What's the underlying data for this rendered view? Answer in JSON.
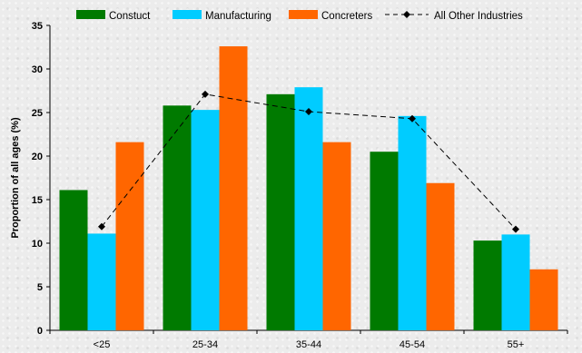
{
  "chart_data": {
    "type": "bar",
    "title": "",
    "xlabel": "",
    "ylabel": "Proportion of all ages (%)",
    "categories": [
      "<25",
      "25-34",
      "35-44",
      "45-54",
      "55+"
    ],
    "ylim": [
      0,
      35
    ],
    "yticks": [
      0,
      5,
      10,
      15,
      20,
      25,
      30,
      35
    ],
    "grid": false,
    "legend_position": "top",
    "series": [
      {
        "name": "Constuct",
        "kind": "bar",
        "color": "#007a00",
        "values": [
          16.1,
          25.8,
          27.1,
          20.5,
          10.3
        ]
      },
      {
        "name": "Manufacturing",
        "kind": "bar",
        "color": "#00ccff",
        "values": [
          11.1,
          25.3,
          27.9,
          24.6,
          11.0
        ]
      },
      {
        "name": "Concreters",
        "kind": "bar",
        "color": "#ff6600",
        "values": [
          21.6,
          32.6,
          21.6,
          16.9,
          7.0
        ]
      },
      {
        "name": "All Other Industries",
        "kind": "line",
        "style": "dashed",
        "marker": "diamond",
        "color": "#000000",
        "values": [
          11.9,
          27.1,
          25.1,
          24.3,
          11.6
        ]
      }
    ]
  }
}
